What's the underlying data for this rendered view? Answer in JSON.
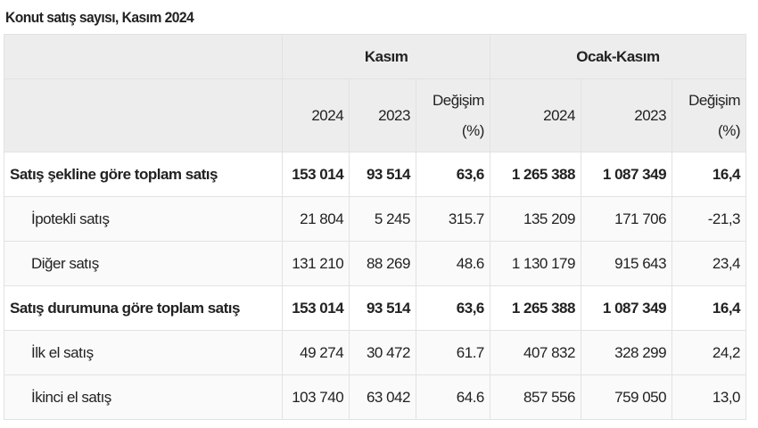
{
  "title": "Konut satış sayısı, Kasım 2024",
  "groups": [
    "Kasım",
    "Ocak-Kasım"
  ],
  "subheaders": [
    "2024",
    "2023",
    "Değişim (%)",
    "2024",
    "2023",
    "Değişim (%)"
  ],
  "rows": [
    {
      "label": "Satış şekline göre toplam satış",
      "bold": true,
      "values": [
        "153 014",
        "93 514",
        "63,6",
        "1 265 388",
        "1 087 349",
        "16,4"
      ]
    },
    {
      "label": "İpotekli satış",
      "bold": false,
      "values": [
        "21 804",
        "5 245",
        "315.7",
        "135 209",
        "171 706",
        "-21,3"
      ]
    },
    {
      "label": "Diğer satış",
      "bold": false,
      "values": [
        "131 210",
        "88 269",
        "48.6",
        "1 130 179",
        "915 643",
        "23,4"
      ]
    },
    {
      "label": "Satış durumuna göre toplam satış",
      "bold": true,
      "values": [
        "153 014",
        "93 514",
        "63,6",
        "1 265 388",
        "1 087 349",
        "16,4"
      ]
    },
    {
      "label": "İlk el satış",
      "bold": false,
      "values": [
        "49 274",
        "30 472",
        "61.7",
        "407 832",
        "328 299",
        "24,2"
      ]
    },
    {
      "label": "İkinci el satış",
      "bold": false,
      "values": [
        "103 740",
        "63 042",
        "64.6",
        "857 556",
        "759 050",
        "13,0"
      ]
    }
  ]
}
